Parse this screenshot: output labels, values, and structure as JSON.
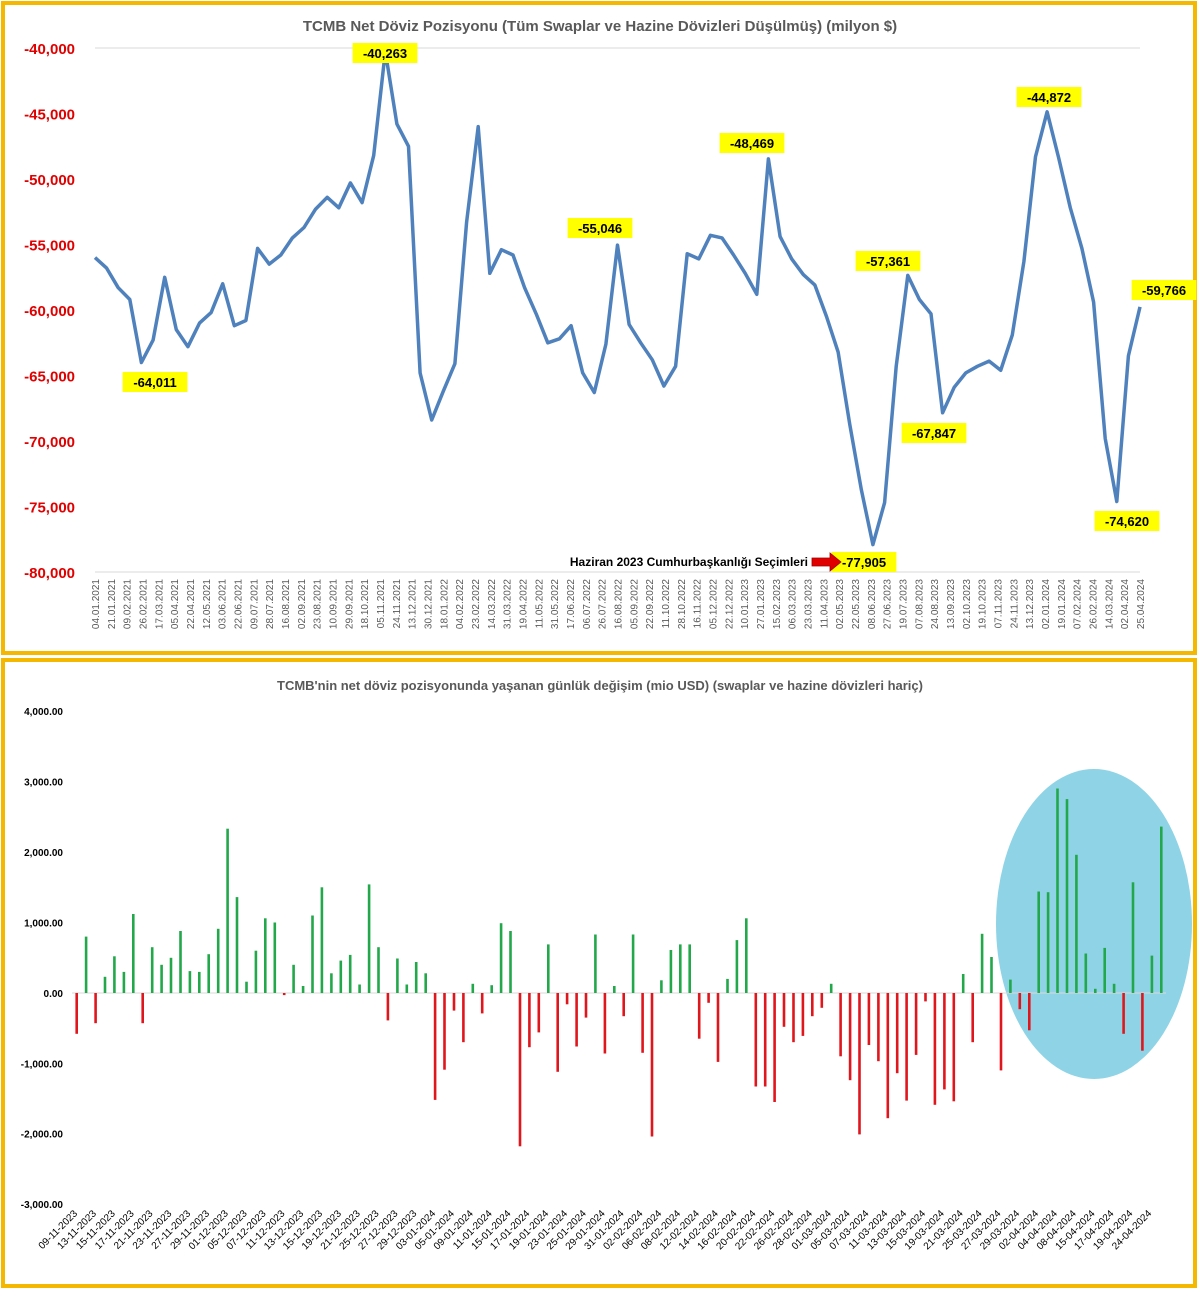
{
  "chart_data": [
    {
      "type": "line",
      "title": "TCMB Net Döviz Pozisyonu (Tüm Swaplar ve Hazine Dövizleri Düşülmüş) (milyon $)",
      "ylim": [
        -80000,
        -40000
      ],
      "yticks": [
        -40000,
        -45000,
        -50000,
        -55000,
        -60000,
        -65000,
        -70000,
        -75000,
        -80000
      ],
      "ytick_labels": [
        "-40,000",
        "-45,000",
        "-50,000",
        "-55,000",
        "-60,000",
        "-65,000",
        "-70,000",
        "-75,000",
        "-80,000"
      ],
      "xtick_labels": [
        "04.01.2021",
        "21.01.2021",
        "09.02.2021",
        "26.02.2021",
        "17.03.2021",
        "05.04.2021",
        "22.04.2021",
        "12.05.2021",
        "03.06.2021",
        "22.06.2021",
        "09.07.2021",
        "28.07.2021",
        "16.08.2021",
        "02.09.2021",
        "23.08.2021",
        "10.09.2021",
        "29.09.2021",
        "18.10.2021",
        "05.11.2021",
        "24.11.2021",
        "13.12.2021",
        "30.12.2021",
        "18.01.2022",
        "04.02.2022",
        "23.02.2022",
        "14.03.2022",
        "31.03.2022",
        "19.04.2022",
        "11.05.2022",
        "31.05.2022",
        "17.06.2022",
        "06.07.2022",
        "26.07.2022",
        "16.08.2022",
        "05.09.2022",
        "22.09.2022",
        "11.10.2022",
        "28.10.2022",
        "16.11.2022",
        "05.12.2022",
        "22.12.2022",
        "10.01.2023",
        "27.01.2023",
        "15.02.2023",
        "06.03.2023",
        "23.03.2023",
        "11.04.2023",
        "02.05.2023",
        "22.05.2023",
        "08.06.2023",
        "27.06.2023",
        "19.07.2023",
        "07.08.2023",
        "24.08.2023",
        "13.09.2023",
        "02.10.2023",
        "19.10.2023",
        "07.11.2023",
        "24.11.2023",
        "13.12.2023",
        "02.01.2024",
        "19.01.2024",
        "07.02.2024",
        "26.02.2024",
        "14.03.2024",
        "02.04.2024",
        "25.04.2024"
      ],
      "series": [
        {
          "color": "#4f81bd",
          "values": [
            -56000,
            -56800,
            -58300,
            -59200,
            -64011,
            -62300,
            -57500,
            -61500,
            -62800,
            -61000,
            -60200,
            -58000,
            -61200,
            -60800,
            -55300,
            -56500,
            -55800,
            -54500,
            -53700,
            -52300,
            -51400,
            -52200,
            -50300,
            -51800,
            -48200,
            -40263,
            -45800,
            -47500,
            -64800,
            -68400,
            -66200,
            -64100,
            -53300,
            -46000,
            -57200,
            -55400,
            -55800,
            -58300,
            -60300,
            -62500,
            -62200,
            -61200,
            -64800,
            -66300,
            -62600,
            -55046,
            -61100,
            -62500,
            -63800,
            -65800,
            -64300,
            -55700,
            -56100,
            -54300,
            -54500,
            -55800,
            -57200,
            -58800,
            -48469,
            -54400,
            -56100,
            -57300,
            -58100,
            -60500,
            -63200,
            -68700,
            -73700,
            -77905,
            -74700,
            -64300,
            -57361,
            -59200,
            -60300,
            -67847,
            -65900,
            -64800,
            -64300,
            -63900,
            -64600,
            -61900,
            -56300,
            -48300,
            -44872,
            -48400,
            -52200,
            -55300,
            -59400,
            -69800,
            -74620,
            -63500,
            -59766
          ]
        }
      ],
      "annotations": [
        {
          "label": "-64,011",
          "value": -64011
        },
        {
          "label": "-40,263",
          "value": -40263
        },
        {
          "label": "-55,046",
          "value": -55046
        },
        {
          "label": "-48,469",
          "value": -48469
        },
        {
          "label": "-57,361",
          "value": -57361
        },
        {
          "label": "-67,847",
          "value": -67847
        },
        {
          "label": "-44,872",
          "value": -44872
        },
        {
          "label": "-74,620",
          "value": -74620
        },
        {
          "label": "-59,766",
          "value": -59766
        },
        {
          "label": "-77,905",
          "value": -77905,
          "note": "Haziran 2023 Cumhurbaşkanlığı Seçimleri"
        }
      ],
      "annotation_color": "#ffff00",
      "ytick_color": "#e00000",
      "grid": "horizontal line at top only"
    },
    {
      "type": "bar",
      "title": "TCMB'nin net döviz pozisyonunda yaşanan günlük değişim (mio USD) (swaplar ve hazine dövizleri hariç)",
      "ylim": [
        -3000,
        4000
      ],
      "yticks": [
        4000,
        3000,
        2000,
        1000,
        0,
        -1000,
        -2000,
        -3000
      ],
      "ytick_labels": [
        "4,000.00",
        "3,000.00",
        "2,000.00",
        "1,000.00",
        "0.00",
        "-1,000.00",
        "-2,000.00",
        "-3,000.00"
      ],
      "xtick_labels": [
        "09-11-2023",
        "13-11-2023",
        "15-11-2023",
        "17-11-2023",
        "21-11-2023",
        "23-11-2023",
        "27-11-2023",
        "29-11-2023",
        "01-12-2023",
        "05-12-2023",
        "07-12-2023",
        "11-12-2023",
        "13-12-2023",
        "15-12-2023",
        "19-12-2023",
        "21-12-2023",
        "25-12-2023",
        "27-12-2023",
        "29-12-2023",
        "03-01-2024",
        "05-01-2024",
        "09-01-2024",
        "11-01-2024",
        "15-01-2024",
        "17-01-2024",
        "19-01-2024",
        "23-01-2024",
        "25-01-2024",
        "29-01-2024",
        "31-01-2024",
        "02-02-2024",
        "06-02-2024",
        "08-02-2024",
        "12-02-2024",
        "14-02-2024",
        "16-02-2024",
        "20-02-2024",
        "22-02-2024",
        "26-02-2024",
        "28-02-2024",
        "01-03-2024",
        "05-03-2024",
        "07-03-2024",
        "11-03-2024",
        "13-03-2024",
        "15-03-2024",
        "19-03-2024",
        "21-03-2024",
        "25-03-2024",
        "27-03-2024",
        "29-03-2024",
        "02-04-2024",
        "04-04-2024",
        "08-04-2024",
        "15-04-2024",
        "17-04-2024",
        "19-04-2024",
        "24-04-2024"
      ],
      "values": [
        -580,
        800,
        -430,
        230,
        520,
        300,
        1120,
        -430,
        650,
        400,
        500,
        880,
        310,
        300,
        550,
        910,
        2330,
        1360,
        160,
        600,
        1060,
        1000,
        -30,
        400,
        100,
        1100,
        1500,
        280,
        460,
        540,
        120,
        1540,
        650,
        -390,
        490,
        120,
        440,
        280,
        -1520,
        -1090,
        -250,
        -700,
        130,
        -290,
        110,
        990,
        880,
        -2180,
        -770,
        -560,
        690,
        -1120,
        -160,
        -760,
        -350,
        830,
        -860,
        100,
        -330,
        830,
        -850,
        -2040,
        180,
        610,
        690,
        690,
        -650,
        -140,
        -980,
        200,
        750,
        1060,
        -1330,
        -1330,
        -1550,
        -480,
        -700,
        -610,
        -330,
        -210,
        130,
        -900,
        -1240,
        -2010,
        -740,
        -970,
        -1780,
        -1140,
        -1530,
        -880,
        -120,
        -1590,
        -1370,
        -1540,
        270,
        -700,
        840,
        510,
        -1100,
        190,
        -230,
        -530,
        1440,
        1430,
        2900,
        2750,
        1960,
        560,
        60,
        640,
        130,
        -580,
        1570,
        -820,
        530,
        2360
      ],
      "positive_color": "#22a84a",
      "negative_color": "#e0161d",
      "highlight_color": "#8fd3e6"
    }
  ]
}
